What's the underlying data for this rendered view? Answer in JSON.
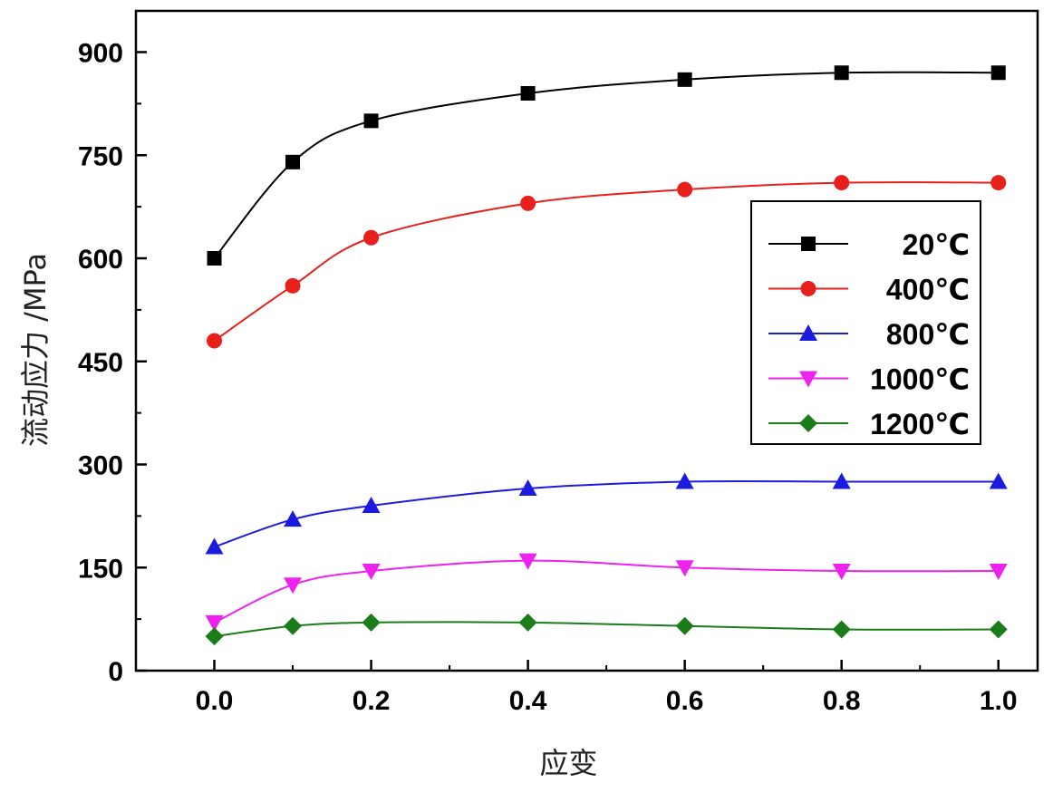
{
  "chart_data": {
    "type": "line",
    "xlabel": "应变",
    "ylabel": "流动应力 /MPa",
    "xlim": [
      -0.1,
      1.05
    ],
    "ylim": [
      0,
      960
    ],
    "x_ticks": [
      "0.0",
      "0.2",
      "0.4",
      "0.6",
      "0.8",
      "1.0"
    ],
    "y_ticks": [
      "0",
      "150",
      "300",
      "450",
      "600",
      "750",
      "900"
    ],
    "x": [
      0.0,
      0.1,
      0.2,
      0.4,
      0.6,
      0.8,
      1.0
    ],
    "legend_position": "right",
    "series": [
      {
        "name": "20℃",
        "color": "#000000",
        "marker": "square",
        "values": [
          600,
          740,
          800,
          840,
          860,
          870,
          870
        ]
      },
      {
        "name": "400℃",
        "color": "#e8201c",
        "marker": "circle",
        "values": [
          480,
          560,
          630,
          680,
          700,
          710,
          710
        ]
      },
      {
        "name": "800℃",
        "color": "#1c1ce0",
        "marker": "triangle-up",
        "values": [
          180,
          220,
          240,
          265,
          275,
          275,
          275
        ]
      },
      {
        "name": "1000℃",
        "color": "#ee22ee",
        "marker": "triangle-down",
        "values": [
          70,
          125,
          145,
          160,
          150,
          145,
          145
        ]
      },
      {
        "name": "1200℃",
        "color": "#1a7d1a",
        "marker": "diamond",
        "values": [
          50,
          65,
          70,
          70,
          65,
          60,
          60
        ]
      }
    ]
  }
}
